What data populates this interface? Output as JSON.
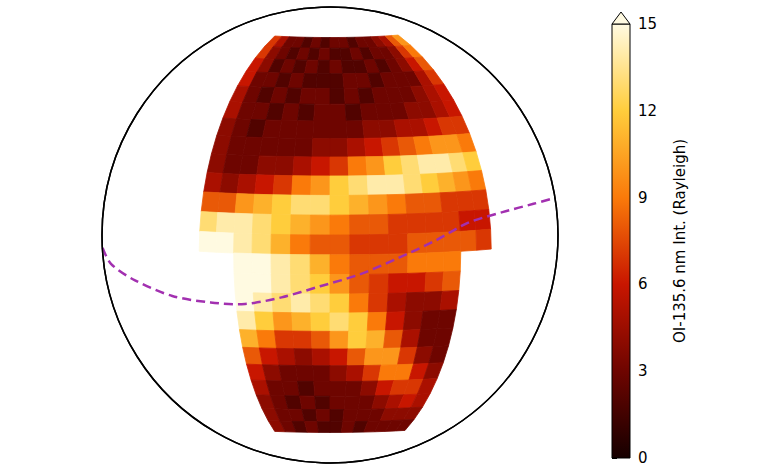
{
  "chart_data": {
    "type": "heatmap",
    "colorbar_label": "OI-135.6 nm Int. (Rayleigh)",
    "colorbar_lim": [
      0,
      15
    ],
    "colorbar_ticks": [
      0,
      3,
      6,
      9,
      12,
      15
    ],
    "lon": [
      -77.5,
      -72.5,
      -67.5,
      -62.5,
      -57.5,
      -52.5,
      -47.5,
      -42.5,
      -37.5,
      -32.5,
      -27.5,
      -22.5,
      -17.5,
      -12.5,
      -7.5,
      -2.5
    ],
    "lat": [
      62.5,
      57.5,
      52.5,
      47.5,
      42.5,
      37.5,
      32.5,
      27.5,
      22.5,
      17.5,
      12.5,
      7.5,
      2.5,
      -2.5,
      -7.5,
      -12.5,
      -17.5,
      -22.5,
      -27.5,
      -32.5,
      -37.5,
      -42.5,
      -47.5,
      -52.5
    ],
    "values": [
      [
        7,
        5,
        3,
        3,
        2,
        3,
        2,
        3,
        3,
        2,
        3,
        3,
        4,
        5,
        8,
        10
      ],
      [
        7,
        4,
        3,
        2,
        3,
        2,
        3,
        2,
        2,
        3,
        2,
        3,
        3,
        4,
        7,
        9
      ],
      [
        6,
        4,
        2,
        3,
        2,
        3,
        2,
        3,
        2,
        2,
        3,
        2,
        3,
        4,
        6,
        8
      ],
      [
        6,
        3,
        3,
        2,
        3,
        2,
        2,
        2,
        3,
        3,
        2,
        3,
        3,
        3,
        5,
        7
      ],
      [
        5,
        3,
        2,
        3,
        2,
        3,
        3,
        2,
        3,
        2,
        3,
        3,
        3,
        4,
        5,
        6
      ],
      [
        5,
        3,
        3,
        2,
        3,
        2,
        3,
        3,
        2,
        3,
        3,
        3,
        4,
        4,
        5,
        6
      ],
      [
        4,
        3,
        2,
        3,
        3,
        3,
        3,
        3,
        3,
        4,
        4,
        5,
        5,
        6,
        7,
        7
      ],
      [
        4,
        3,
        3,
        3,
        3,
        3,
        4,
        4,
        5,
        6,
        7,
        8,
        9,
        10,
        10,
        9
      ],
      [
        4,
        3,
        3,
        4,
        4,
        5,
        6,
        7,
        9,
        10,
        12,
        13,
        14,
        14,
        13,
        12
      ],
      [
        5,
        4,
        5,
        6,
        7,
        9,
        10,
        12,
        13,
        14,
        14,
        13,
        12,
        11,
        10,
        9
      ],
      [
        8,
        8,
        10,
        11,
        12,
        13,
        13,
        12,
        11,
        10,
        9,
        8,
        8,
        7,
        7,
        7
      ],
      [
        13,
        14,
        14,
        13,
        12,
        11,
        10,
        9,
        8,
        8,
        7,
        7,
        7,
        7,
        6,
        6
      ],
      [
        15,
        15,
        14,
        13,
        11,
        9,
        8,
        8,
        7,
        7,
        7,
        8,
        8,
        8,
        8,
        7
      ],
      [
        null,
        null,
        15,
        15,
        14,
        13,
        11,
        9,
        8,
        8,
        8,
        9,
        9,
        9,
        null,
        null
      ],
      [
        null,
        null,
        15,
        15,
        14,
        13,
        12,
        10,
        8,
        7,
        6,
        6,
        7,
        8,
        null,
        null
      ],
      [
        null,
        null,
        15,
        14,
        13,
        14,
        13,
        12,
        9,
        7,
        5,
        4,
        4,
        5,
        null,
        null
      ],
      [
        null,
        null,
        14,
        12,
        10,
        11,
        12,
        13,
        12,
        9,
        6,
        4,
        3,
        3,
        null,
        null
      ],
      [
        null,
        null,
        11,
        9,
        7,
        7,
        8,
        10,
        12,
        11,
        8,
        5,
        3,
        3,
        null,
        null
      ],
      [
        null,
        null,
        8,
        6,
        5,
        4,
        5,
        6,
        8,
        10,
        10,
        7,
        4,
        3,
        null,
        null
      ],
      [
        null,
        null,
        6,
        4,
        3,
        3,
        3,
        4,
        5,
        7,
        9,
        9,
        6,
        4,
        null,
        null
      ],
      [
        null,
        null,
        5,
        3,
        3,
        2,
        3,
        3,
        3,
        4,
        6,
        7,
        7,
        5,
        null,
        null
      ],
      [
        null,
        null,
        4,
        3,
        2,
        3,
        2,
        3,
        3,
        3,
        4,
        5,
        6,
        5,
        null,
        null
      ],
      [
        null,
        null,
        4,
        3,
        3,
        2,
        3,
        2,
        3,
        3,
        3,
        4,
        4,
        4,
        null,
        null
      ],
      [
        null,
        null,
        4,
        3,
        2,
        3,
        2,
        2,
        3,
        2,
        3,
        3,
        3,
        3,
        null,
        null
      ]
    ],
    "magnetic_equator": {
      "lon": [
        -132,
        -120,
        -105,
        -90,
        -77.5,
        -67.5,
        -57.5,
        -47.5,
        -37.5,
        -27.5,
        -17.5,
        -7.5,
        5,
        20,
        35
      ],
      "lat": [
        -3,
        -6,
        -9,
        -12,
        -13,
        -13,
        -11,
        -8,
        -5,
        -1,
        3,
        7,
        9,
        10,
        10
      ]
    }
  }
}
